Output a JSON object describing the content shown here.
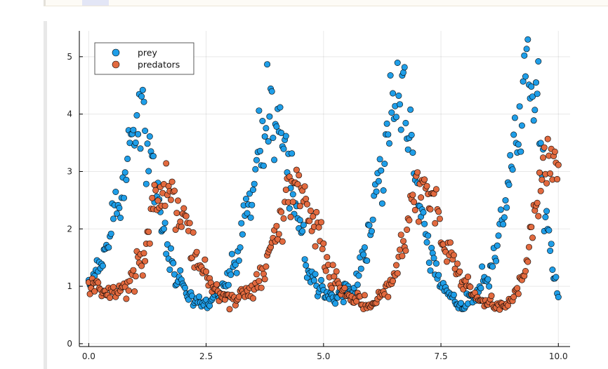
{
  "notebook": {
    "cell_colors": {
      "top_cell_bg": "#fdfbf6",
      "cell_bar": "#e8e8e8"
    }
  },
  "chart_data": {
    "type": "scatter",
    "title": "",
    "xlabel": "",
    "ylabel": "",
    "xlim": [
      -0.2,
      10.25
    ],
    "ylim": [
      -0.05,
      5.45
    ],
    "grid": true,
    "legend_position": "top-left",
    "x_ticks": [
      0.0,
      2.5,
      5.0,
      7.5,
      10.0
    ],
    "x_tick_labels": [
      "0.0",
      "2.5",
      "5.0",
      "7.5",
      "10.0"
    ],
    "y_ticks": [
      0,
      1,
      2,
      3,
      4,
      5
    ],
    "y_tick_labels": [
      "0",
      "1",
      "2",
      "3",
      "4",
      "5"
    ],
    "series": [
      {
        "name": "prey",
        "color": "#1f9ee8",
        "points_per_x": 40,
        "keyframes": [
          [
            0.0,
            1.0
          ],
          [
            0.3,
            1.4
          ],
          [
            0.6,
            2.3
          ],
          [
            0.9,
            3.6
          ],
          [
            1.1,
            4.0
          ],
          [
            1.3,
            3.6
          ],
          [
            1.5,
            2.5
          ],
          [
            1.7,
            1.6
          ],
          [
            1.9,
            1.1
          ],
          [
            2.2,
            0.8
          ],
          [
            2.5,
            0.75
          ],
          [
            2.8,
            0.9
          ],
          [
            3.1,
            1.4
          ],
          [
            3.4,
            2.4
          ],
          [
            3.7,
            3.6
          ],
          [
            3.9,
            4.2
          ],
          [
            4.1,
            3.8
          ],
          [
            4.3,
            2.9
          ],
          [
            4.5,
            1.9
          ],
          [
            4.7,
            1.2
          ],
          [
            5.0,
            0.9
          ],
          [
            5.3,
            0.8
          ],
          [
            5.6,
            1.0
          ],
          [
            5.9,
            1.6
          ],
          [
            6.2,
            2.8
          ],
          [
            6.5,
            4.1
          ],
          [
            6.7,
            4.3
          ],
          [
            6.9,
            3.5
          ],
          [
            7.1,
            2.3
          ],
          [
            7.3,
            1.4
          ],
          [
            7.6,
            0.9
          ],
          [
            7.9,
            0.65
          ],
          [
            8.2,
            0.8
          ],
          [
            8.5,
            1.2
          ],
          [
            8.8,
            2.1
          ],
          [
            9.1,
            3.6
          ],
          [
            9.35,
            4.7
          ],
          [
            9.55,
            4.2
          ],
          [
            9.75,
            2.3
          ],
          [
            9.9,
            1.2
          ],
          [
            10.0,
            0.8
          ]
        ]
      },
      {
        "name": "predators",
        "color": "#e26a3f",
        "points_per_x": 40,
        "keyframes": [
          [
            0.0,
            1.05
          ],
          [
            0.4,
            0.85
          ],
          [
            0.8,
            1.0
          ],
          [
            1.1,
            1.4
          ],
          [
            1.4,
            2.3
          ],
          [
            1.7,
            2.7
          ],
          [
            2.0,
            2.2
          ],
          [
            2.3,
            1.5
          ],
          [
            2.6,
            1.0
          ],
          [
            3.0,
            0.8
          ],
          [
            3.4,
            0.85
          ],
          [
            3.7,
            1.2
          ],
          [
            4.0,
            2.0
          ],
          [
            4.3,
            2.8
          ],
          [
            4.6,
            2.5
          ],
          [
            4.9,
            1.8
          ],
          [
            5.2,
            1.1
          ],
          [
            5.6,
            0.8
          ],
          [
            6.0,
            0.7
          ],
          [
            6.4,
            1.0
          ],
          [
            6.7,
            1.6
          ],
          [
            6.9,
            2.6
          ],
          [
            7.1,
            3.0
          ],
          [
            7.3,
            2.6
          ],
          [
            7.6,
            1.7
          ],
          [
            7.9,
            1.2
          ],
          [
            8.3,
            0.8
          ],
          [
            8.7,
            0.65
          ],
          [
            9.0,
            0.75
          ],
          [
            9.3,
            1.3
          ],
          [
            9.5,
            2.3
          ],
          [
            9.7,
            3.1
          ],
          [
            9.85,
            3.2
          ],
          [
            10.0,
            3.0
          ]
        ]
      }
    ]
  }
}
